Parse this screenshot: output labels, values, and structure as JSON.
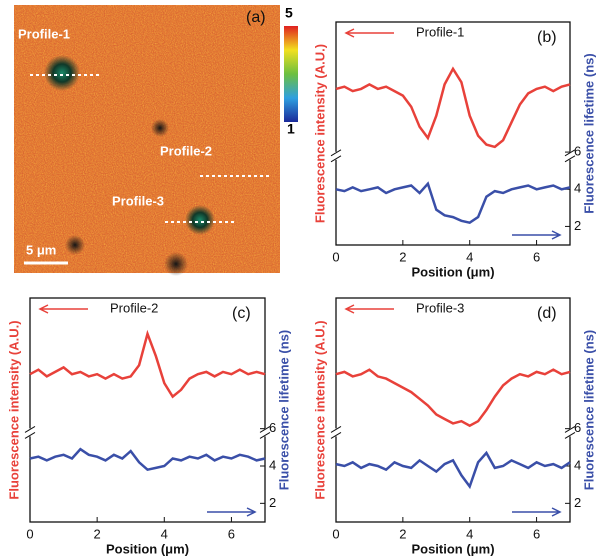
{
  "image_panel": {
    "panel_label": "(a)",
    "profiles": [
      "Profile-1",
      "Profile-2",
      "Profile-3"
    ],
    "colorbar": {
      "max": 5,
      "min": 1
    },
    "scale_bar": "5 μm"
  },
  "chart_data": [
    {
      "type": "line",
      "title": "Profile-1",
      "panel_label": "(b)",
      "xlabel": "Position (μm)",
      "ylabel": "Fluorescence intensity (A.U.)",
      "y2label": "Fluorescence lifetime (ns)",
      "xlim": [
        0,
        7
      ],
      "xticks": [
        0,
        2,
        4,
        6
      ],
      "ylim": [
        0,
        1
      ],
      "y2lim": [
        1,
        13
      ],
      "y2ticks": [
        2,
        4,
        6
      ],
      "x": [
        0,
        0.25,
        0.5,
        0.75,
        1,
        1.25,
        1.5,
        1.75,
        2,
        2.25,
        2.5,
        2.75,
        3,
        3.25,
        3.5,
        3.75,
        4,
        4.25,
        4.5,
        4.75,
        5,
        5.25,
        5.5,
        5.75,
        6,
        6.25,
        6.5,
        6.75,
        7
      ],
      "series": [
        {
          "color": "#e8413a",
          "values": [
            0.7,
            0.71,
            0.69,
            0.7,
            0.72,
            0.7,
            0.71,
            0.69,
            0.67,
            0.62,
            0.53,
            0.48,
            0.58,
            0.72,
            0.79,
            0.73,
            0.58,
            0.49,
            0.45,
            0.44,
            0.47,
            0.55,
            0.63,
            0.68,
            0.7,
            0.71,
            0.69,
            0.71,
            0.72
          ]
        },
        {
          "color": "#3a4fa8",
          "axis": "y2",
          "values": [
            4.0,
            3.9,
            4.1,
            3.9,
            4.0,
            4.1,
            3.8,
            4.0,
            4.1,
            4.2,
            3.8,
            4.3,
            2.9,
            2.6,
            2.5,
            2.3,
            2.2,
            2.5,
            3.6,
            3.9,
            3.8,
            4.0,
            4.1,
            4.2,
            4.0,
            4.1,
            4.2,
            4.0,
            4.1
          ]
        }
      ]
    },
    {
      "type": "line",
      "title": "Profile-2",
      "panel_label": "(c)",
      "xlabel": "Position (μm)",
      "ylabel": "Fluorescence intensity (A.U.)",
      "y2label": "Fluorescence lifetime (ns)",
      "xlim": [
        0,
        7
      ],
      "xticks": [
        0,
        2,
        4,
        6
      ],
      "ylim": [
        0,
        1
      ],
      "y2lim": [
        1,
        13
      ],
      "y2ticks": [
        2,
        4,
        6
      ],
      "x": [
        0,
        0.25,
        0.5,
        0.75,
        1,
        1.25,
        1.5,
        1.75,
        2,
        2.25,
        2.5,
        2.75,
        3,
        3.25,
        3.5,
        3.75,
        4,
        4.25,
        4.5,
        4.75,
        5,
        5.25,
        5.5,
        5.75,
        6,
        6.25,
        6.5,
        6.75,
        7
      ],
      "series": [
        {
          "color": "#e8413a",
          "values": [
            0.66,
            0.68,
            0.65,
            0.67,
            0.69,
            0.66,
            0.67,
            0.65,
            0.66,
            0.64,
            0.66,
            0.64,
            0.65,
            0.7,
            0.84,
            0.74,
            0.62,
            0.56,
            0.59,
            0.64,
            0.66,
            0.67,
            0.65,
            0.67,
            0.66,
            0.68,
            0.66,
            0.67,
            0.66
          ]
        },
        {
          "color": "#3a4fa8",
          "axis": "y2",
          "values": [
            4.4,
            4.5,
            4.3,
            4.5,
            4.6,
            4.4,
            4.9,
            4.6,
            4.5,
            4.3,
            4.6,
            4.4,
            4.8,
            4.2,
            3.8,
            3.9,
            4.0,
            4.4,
            4.3,
            4.5,
            4.4,
            4.6,
            4.3,
            4.5,
            4.4,
            4.6,
            4.5,
            4.3,
            4.4
          ]
        }
      ]
    },
    {
      "type": "line",
      "title": "Profile-3",
      "panel_label": "(d)",
      "xlabel": "Position (μm)",
      "ylabel": "Fluorescence intensity (A.U.)",
      "y2label": "Fluorescence lifetime (ns)",
      "xlim": [
        0,
        7
      ],
      "xticks": [
        0,
        2,
        4,
        6
      ],
      "ylim": [
        0,
        1
      ],
      "y2lim": [
        1,
        13
      ],
      "y2ticks": [
        2,
        4,
        6
      ],
      "x": [
        0,
        0.25,
        0.5,
        0.75,
        1,
        1.25,
        1.5,
        1.75,
        2,
        2.25,
        2.5,
        2.75,
        3,
        3.25,
        3.5,
        3.75,
        4,
        4.25,
        4.5,
        4.75,
        5,
        5.25,
        5.5,
        5.75,
        6,
        6.25,
        6.5,
        6.75,
        7
      ],
      "series": [
        {
          "color": "#e8413a",
          "values": [
            0.66,
            0.67,
            0.65,
            0.66,
            0.68,
            0.65,
            0.64,
            0.62,
            0.6,
            0.58,
            0.55,
            0.52,
            0.48,
            0.46,
            0.44,
            0.45,
            0.43,
            0.45,
            0.5,
            0.56,
            0.61,
            0.64,
            0.66,
            0.65,
            0.67,
            0.66,
            0.68,
            0.66,
            0.67
          ]
        },
        {
          "color": "#3a4fa8",
          "axis": "y2",
          "values": [
            4.1,
            4.0,
            4.2,
            3.9,
            4.1,
            4.0,
            3.8,
            4.2,
            4.0,
            3.9,
            4.3,
            4.0,
            3.7,
            4.1,
            4.3,
            3.5,
            2.9,
            4.2,
            4.7,
            3.9,
            4.0,
            4.3,
            4.1,
            3.9,
            4.2,
            4.0,
            4.1,
            3.9,
            4.2
          ]
        }
      ]
    }
  ]
}
